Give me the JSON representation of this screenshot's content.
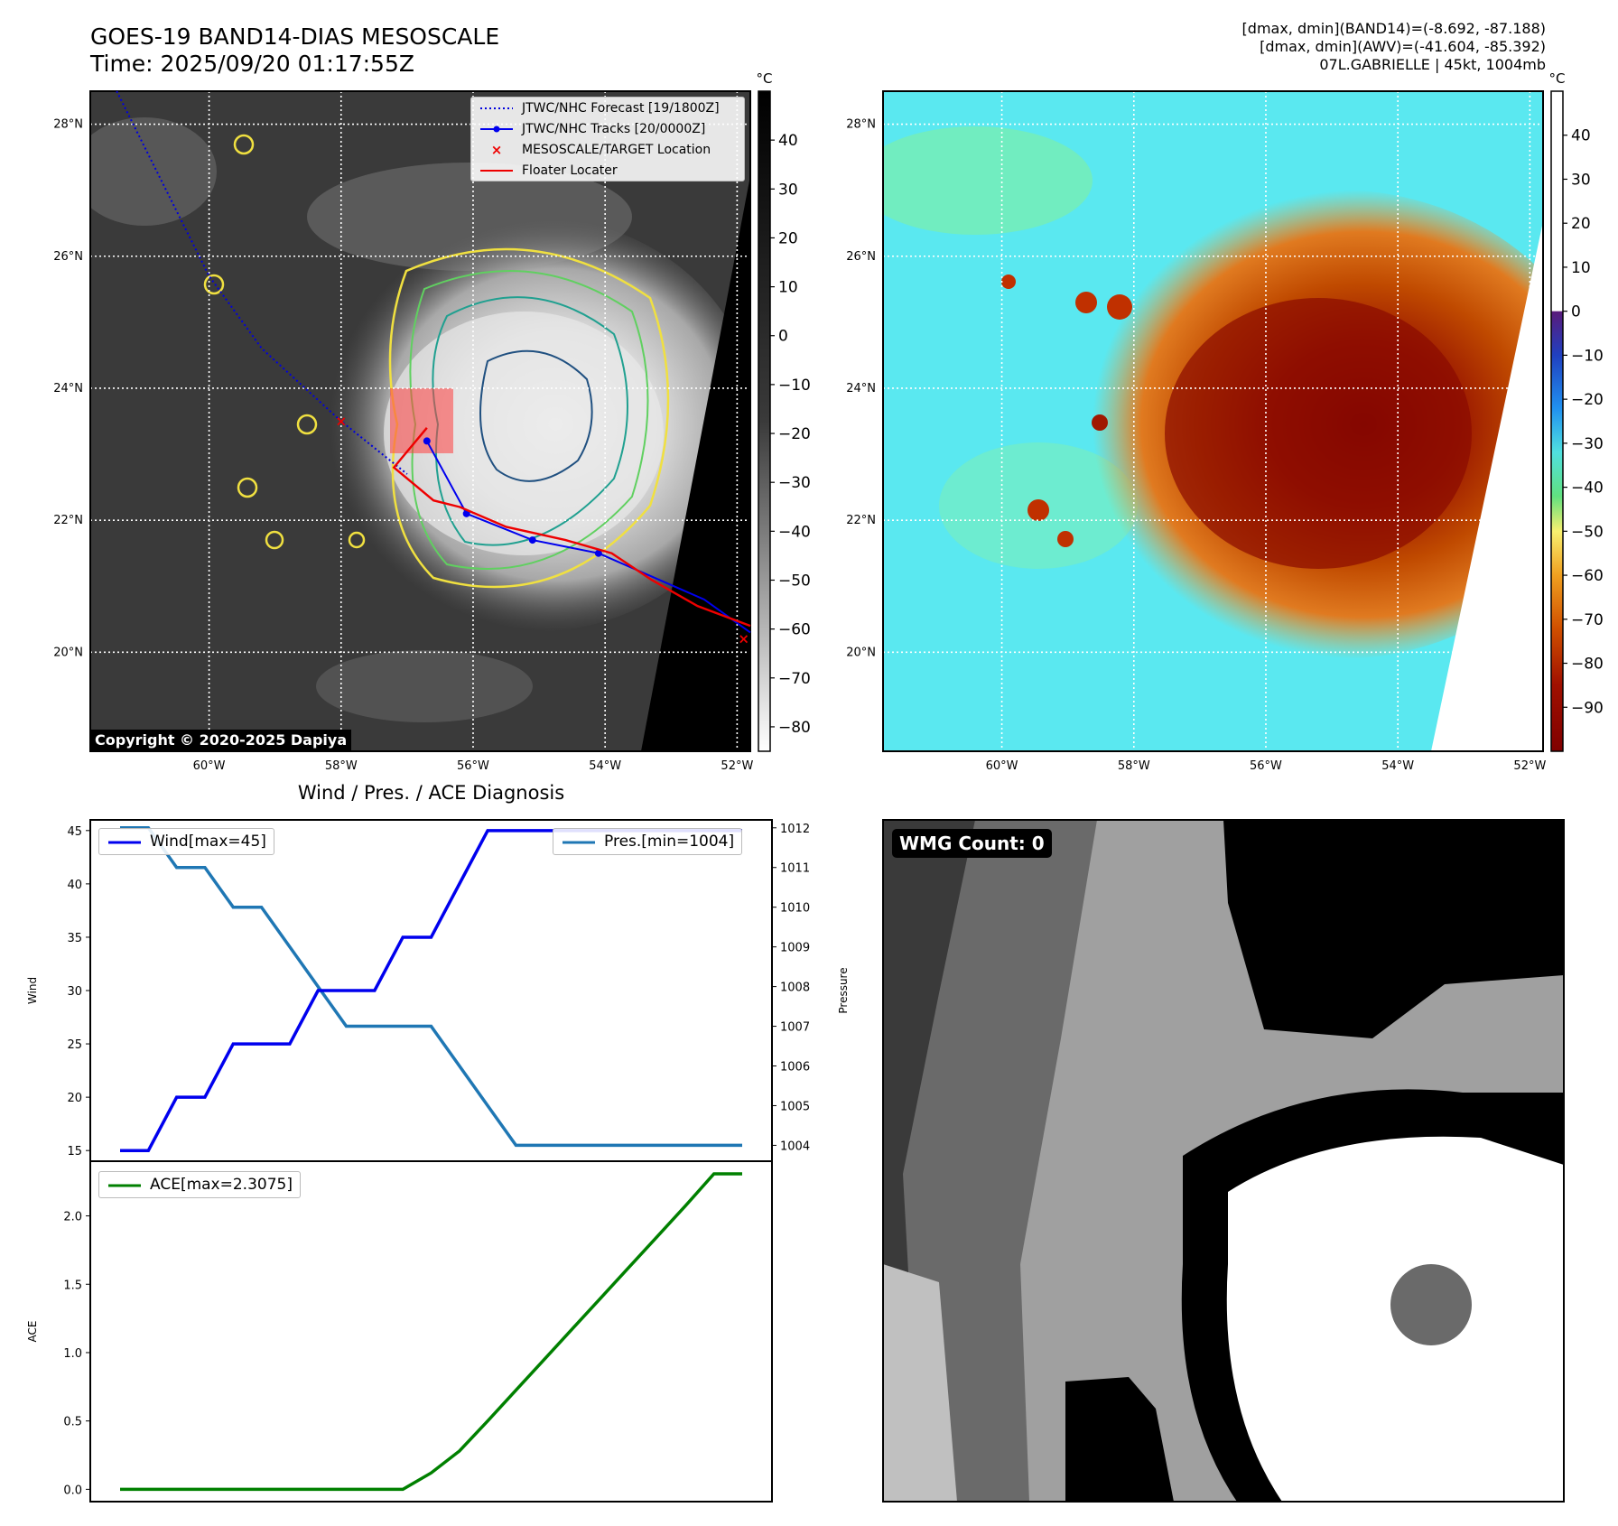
{
  "header": {
    "title_line1": "GOES-19 BAND14-DIAS MESOSCALE",
    "title_line2": "Time: 2025/09/20 01:17:55Z",
    "stats_line1": "[dmax, dmin](BAND14)=(-8.692, -87.188)",
    "stats_line2": "[dmax, dmin](AWV)=(-41.604, -85.392)",
    "stats_line3": "07L.GABRIELLE | 45kt, 1004mb"
  },
  "copyright": "Copyright © 2020-2025 Dapiya",
  "map_axes": {
    "lon_ticks": [
      "60°W",
      "58°W",
      "56°W",
      "54°W",
      "52°W"
    ],
    "lat_ticks": [
      "28°N",
      "26°N",
      "24°N",
      "22°N",
      "20°N"
    ],
    "lon_range": [
      -61.8,
      -51.8
    ],
    "lat_range": [
      18.5,
      28.5
    ]
  },
  "colorbar_gray": {
    "unit": "°C",
    "ticks": [
      "40",
      "30",
      "20",
      "10",
      "0",
      "−10",
      "−20",
      "−30",
      "−40",
      "−50",
      "−60",
      "−70",
      "−80"
    ],
    "range": [
      -85,
      50
    ]
  },
  "colorbar_color": {
    "unit": "°C",
    "ticks": [
      "40",
      "30",
      "20",
      "10",
      "0",
      "−10",
      "−20",
      "−30",
      "−40",
      "−50",
      "−60",
      "−70",
      "−80",
      "−90"
    ],
    "range": [
      -100,
      50
    ]
  },
  "map_legend": {
    "forecast": "JTWC/NHC Forecast [19/1800Z]",
    "tracks": "JTWC/NHC Tracks [20/0000Z]",
    "target": "MESOSCALE/TARGET Location",
    "floater": "Floater Locater"
  },
  "track_colors": {
    "forecast": "#0000dd",
    "tracks": "#0000ee",
    "floater": "#ee0000",
    "target": "#ee0000"
  },
  "diagnosis_title": "Wind / Pres. / ACE Diagnosis",
  "wmg_label": "WMG Count: 0",
  "chart_data": [
    {
      "type": "line",
      "title": "Wind / Pres. / ACE Diagnosis",
      "xlabel": "",
      "ylabel": "Wind",
      "y2label": "Pressure",
      "x": [
        0,
        1,
        2,
        3,
        4,
        5,
        6,
        7,
        8,
        9,
        10,
        11,
        12,
        13,
        14,
        15,
        16,
        17,
        18,
        19,
        20,
        21,
        22
      ],
      "ylim": [
        14,
        46
      ],
      "y2lim": [
        1003.6,
        1012.2
      ],
      "yticks": [
        15,
        20,
        25,
        30,
        35,
        40,
        45
      ],
      "y2ticks": [
        1004,
        1005,
        1006,
        1007,
        1008,
        1009,
        1010,
        1011,
        1012
      ],
      "series": [
        {
          "name": "Wind[max=45]",
          "axis": "left",
          "color": "#0000ee",
          "values": [
            15,
            15,
            20,
            20,
            25,
            25,
            25,
            30,
            30,
            30,
            35,
            35,
            40,
            45,
            45,
            45,
            45,
            45,
            45,
            45,
            45,
            45,
            45
          ]
        },
        {
          "name": "Pres.[min=1004]",
          "axis": "right",
          "color": "#1f77b4",
          "values": [
            1012,
            1012,
            1011,
            1011,
            1010,
            1010,
            1009,
            1008,
            1007,
            1007,
            1007,
            1007,
            1006,
            1005,
            1004,
            1004,
            1004,
            1004,
            1004,
            1004,
            1004,
            1004,
            1004
          ]
        }
      ]
    },
    {
      "type": "line",
      "xlabel": "",
      "ylabel": "ACE",
      "x": [
        0,
        1,
        2,
        3,
        4,
        5,
        6,
        7,
        8,
        9,
        10,
        11,
        12,
        13,
        14,
        15,
        16,
        17,
        18,
        19,
        20,
        21,
        22
      ],
      "ylim": [
        -0.09,
        2.4
      ],
      "yticks": [
        0.0,
        0.5,
        1.0,
        1.5,
        2.0
      ],
      "series": [
        {
          "name": "ACE[max=2.3075]",
          "color": "#008000",
          "values": [
            0,
            0,
            0,
            0,
            0,
            0,
            0,
            0,
            0,
            0,
            0,
            0.12,
            0.28,
            0.5,
            0.725,
            0.95,
            1.175,
            1.4,
            1.625,
            1.85,
            2.075,
            2.3075,
            2.3075
          ]
        }
      ]
    }
  ]
}
